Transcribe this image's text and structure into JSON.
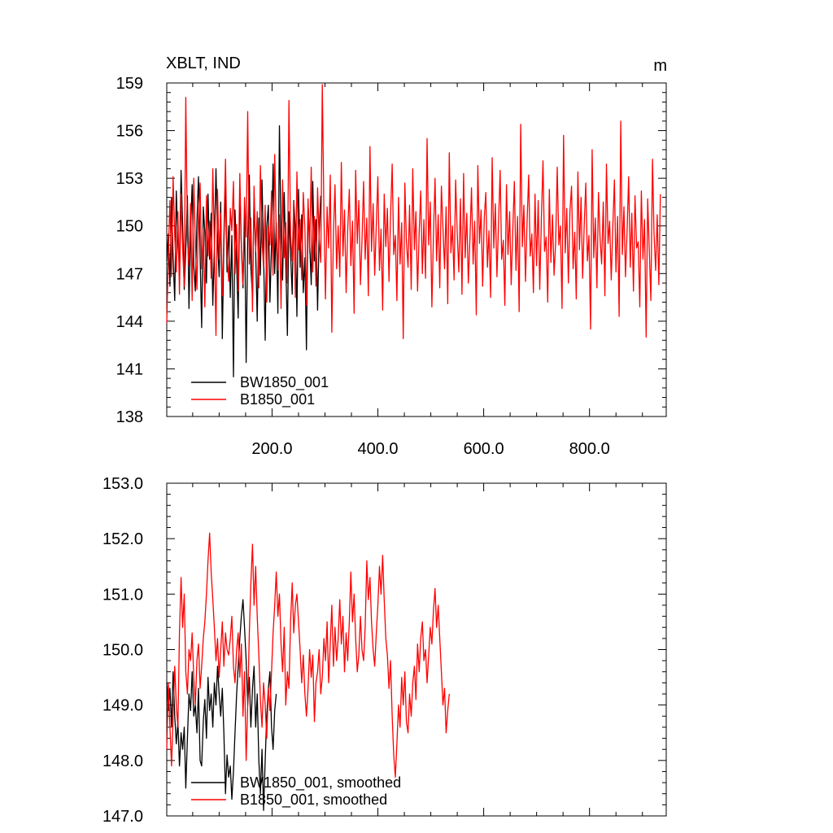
{
  "chart_data": [
    {
      "type": "line",
      "title_left": "XBLT, IND",
      "title_right": "m",
      "xlim": [
        1,
        945
      ],
      "ylim": [
        138,
        159
      ],
      "x_ticks": [
        200,
        400,
        600,
        800
      ],
      "x_tick_labels": [
        "200.0",
        "400.0",
        "600.0",
        "800.0"
      ],
      "y_ticks": [
        138,
        141,
        144,
        147,
        150,
        153,
        156,
        159
      ],
      "y_tick_labels": [
        "138",
        "141",
        "144",
        "147",
        "150",
        "153",
        "156",
        "159"
      ],
      "legend_position": "bottom-left",
      "series": [
        {
          "name": "BW1850_001",
          "color": "#000000",
          "x_start": 1,
          "x_step": 3,
          "values": [
            147.8,
            149.5,
            146.2,
            151.8,
            148.0,
            145.3,
            152.2,
            149.0,
            147.2,
            153.5,
            150.1,
            146.0,
            148.6,
            151.9,
            144.8,
            149.7,
            152.6,
            147.5,
            145.9,
            150.3,
            153.1,
            148.1,
            143.6,
            151.2,
            149.6,
            146.4,
            152.0,
            147.9,
            150.8,
            145.0,
            148.5,
            153.6,
            149.2,
            146.8,
            151.5,
            142.9,
            148.9,
            152.5,
            147.1,
            150.0,
            145.5,
            149.4,
            140.5,
            151.0,
            147.6,
            144.2,
            152.4,
            148.7,
            146.1,
            150.6,
            141.4,
            149.1,
            153.2,
            147.3,
            145.6,
            151.7,
            148.4,
            144.0,
            150.5,
            146.9,
            152.9,
            148.2,
            142.8,
            149.9,
            151.3,
            145.2,
            148.8,
            153.9,
            147.0,
            150.2,
            144.5,
            156.3,
            149.3,
            146.6,
            152.1,
            147.7,
            143.1,
            150.9,
            148.3,
            145.7,
            151.6,
            149.8,
            144.3,
            152.3,
            147.4,
            150.7,
            145.8,
            148.0,
            142.2,
            151.4,
            149.0,
            146.3,
            152.8,
            147.8,
            150.4,
            144.7,
            149.5,
            151.9
          ]
        },
        {
          "name": "B1850_001",
          "color": "#ff0000",
          "x_start": 1,
          "x_step": 3,
          "values": [
            143.9,
            148.3,
            151.6,
            146.8,
            153.1,
            149.4,
            147.1,
            150.9,
            145.7,
            152.0,
            148.6,
            146.2,
            158.1,
            149.2,
            147.5,
            151.4,
            145.3,
            153.0,
            148.9,
            146.0,
            150.6,
            152.7,
            147.3,
            149.8,
            144.9,
            151.9,
            148.1,
            150.3,
            146.7,
            153.6,
            149.0,
            143.1,
            152.3,
            147.9,
            150.8,
            145.6,
            149.5,
            154.2,
            148.2,
            146.5,
            151.1,
            149.7,
            152.8,
            147.0,
            150.1,
            145.9,
            153.3,
            148.7,
            146.3,
            151.8,
            149.3,
            157.2,
            147.6,
            150.5,
            144.6,
            152.5,
            148.4,
            150.9,
            146.1,
            153.8,
            149.1,
            147.4,
            151.3,
            145.2,
            150.0,
            148.8,
            152.2,
            146.9,
            154.5,
            149.6,
            147.2,
            150.7,
            144.8,
            152.9,
            148.0,
            150.2,
            146.4,
            157.9,
            149.4,
            147.8,
            151.5,
            145.5,
            153.4,
            148.5,
            150.4,
            146.6,
            152.1,
            149.9,
            145.0,
            151.7,
            148.3,
            153.7,
            147.1,
            150.6,
            146.2,
            152.4,
            149.2,
            147.7,
            158.9,
            150.8,
            145.4,
            151.2,
            148.6,
            153.2,
            143.3,
            149.5,
            152.6,
            147.3,
            150.0,
            146.8,
            154.0,
            148.1,
            151.0,
            145.8,
            149.7,
            152.3,
            147.5,
            150.3,
            144.5,
            153.5,
            148.9,
            151.6,
            146.3,
            149.1,
            152.8,
            147.9,
            150.5,
            145.6,
            155.0,
            148.4,
            151.4,
            146.9,
            150.1,
            153.1,
            147.2,
            149.8,
            144.7,
            152.0,
            148.7,
            151.1,
            146.5,
            150.6,
            153.9,
            148.2,
            149.4,
            145.3,
            151.8,
            147.6,
            150.2,
            142.9,
            152.7,
            149.0,
            147.4,
            151.3,
            146.0,
            153.6,
            148.5,
            150.9,
            145.9,
            149.6,
            152.2,
            147.0,
            150.4,
            146.7,
            155.5,
            148.8,
            151.5,
            144.9,
            149.3,
            153.0,
            147.8,
            150.7,
            146.1,
            152.5,
            149.9,
            147.3,
            151.2,
            145.1,
            154.6,
            148.3,
            150.0,
            146.6,
            152.9,
            149.5,
            147.1,
            151.7,
            145.7,
            153.3,
            148.0,
            150.8,
            146.4,
            149.2,
            152.4,
            147.6,
            150.3,
            144.4,
            153.8,
            148.9,
            151.0,
            146.2,
            150.5,
            152.1,
            147.4,
            149.7,
            145.5,
            154.3,
            148.6,
            151.4,
            146.8,
            150.1,
            153.5,
            147.9,
            149.1,
            145.0,
            152.6,
            148.2,
            150.9,
            146.3,
            149.8,
            152.8,
            147.2,
            150.6,
            144.6,
            156.4,
            148.7,
            151.3,
            146.5,
            150.2,
            153.2,
            148.1,
            149.5,
            145.8,
            152.0,
            147.5,
            151.6,
            146.0,
            150.4,
            154.1,
            148.4,
            149.3,
            145.2,
            152.3,
            147.7,
            150.7,
            146.9,
            149.0,
            153.7,
            148.8,
            150.0,
            144.8,
            155.7,
            148.3,
            151.1,
            146.4,
            150.9,
            152.5,
            147.3,
            149.6,
            145.4,
            153.4,
            148.5,
            151.8,
            146.7,
            150.1,
            152.7,
            147.8,
            149.4,
            143.5,
            154.8,
            148.0,
            150.5,
            146.1,
            152.1,
            149.2,
            147.6,
            151.5,
            145.6,
            153.9,
            148.9,
            150.3,
            146.6,
            149.9,
            152.9,
            147.1,
            150.6,
            144.3,
            156.6,
            148.2,
            151.2,
            146.8,
            149.7,
            153.1,
            147.4,
            150.8,
            145.9,
            151.9,
            148.6,
            149.0,
            144.9,
            152.2,
            147.9,
            150.4,
            143.0,
            151.7,
            148.4,
            145.3,
            154.2,
            149.5,
            147.2,
            150.7,
            146.3,
            152.0
          ]
        }
      ]
    },
    {
      "type": "line",
      "xlim": [
        1,
        945
      ],
      "ylim": [
        147.0,
        153.0
      ],
      "x_ticks": [
        200,
        400,
        600,
        800
      ],
      "y_ticks": [
        147,
        148,
        149,
        150,
        151,
        152,
        153
      ],
      "y_tick_labels": [
        "147.0",
        "148.0",
        "149.0",
        "150.0",
        "151.0",
        "152.0",
        "153.0"
      ],
      "legend_position": "bottom-left",
      "series": [
        {
          "name": "BW1850_001, smoothed",
          "color": "#000000",
          "x_start": 1,
          "x_step": 3,
          "values": [
            149.4,
            148.9,
            149.3,
            148.6,
            149.6,
            148.8,
            148.3,
            148.7,
            147.9,
            148.5,
            148.2,
            148.6,
            147.5,
            148.4,
            149.2,
            148.9,
            149.6,
            148.8,
            149.0,
            148.5,
            149.3,
            148.0,
            147.9,
            148.7,
            149.1,
            148.4,
            149.5,
            148.9,
            149.2,
            148.6,
            149.4,
            149.0,
            149.7,
            149.2,
            148.8,
            149.3,
            148.5,
            147.4,
            148.1,
            147.7,
            147.9,
            147.3,
            147.8,
            148.5,
            149.2,
            149.7,
            150.2,
            150.6,
            150.9,
            150.4,
            149.8,
            149.0,
            149.5,
            148.6,
            149.3,
            149.7,
            148.6,
            149.2,
            148.0,
            147.4,
            148.2,
            147.1,
            148.0,
            148.8,
            149.3,
            149.6,
            148.6,
            148.2,
            148.9,
            149.2
          ]
        },
        {
          "name": "B1850_001, smoothed",
          "color": "#ff0000",
          "x_start": 1,
          "x_step": 3,
          "values": [
            148.2,
            149.4,
            148.6,
            147.9,
            148.8,
            149.7,
            149.0,
            148.6,
            150.3,
            151.3,
            150.4,
            151.0,
            149.6,
            149.2,
            150.0,
            149.8,
            150.3,
            149.5,
            149.0,
            149.8,
            150.1,
            149.3,
            149.7,
            150.2,
            150.5,
            151.0,
            151.6,
            152.1,
            151.4,
            150.9,
            150.4,
            149.8,
            150.2,
            149.5,
            150.0,
            150.5,
            149.7,
            150.3,
            150.0,
            149.9,
            150.2,
            150.6,
            149.7,
            149.4,
            150.0,
            150.3,
            149.5,
            150.1,
            148.8,
            149.6,
            148.0,
            149.0,
            150.3,
            151.2,
            151.9,
            150.8,
            151.5,
            150.6,
            149.9,
            149.1,
            148.6,
            149.4,
            149.0,
            148.4,
            149.3,
            148.9,
            149.6,
            150.3,
            150.8,
            151.4,
            150.6,
            151.0,
            150.1,
            149.6,
            150.4,
            149.0,
            149.6,
            149.3,
            150.5,
            151.2,
            150.3,
            150.8,
            151.0,
            150.5,
            150.0,
            149.4,
            149.9,
            149.2,
            148.8,
            149.3,
            150.0,
            149.5,
            149.9,
            148.7,
            149.4,
            149.6,
            150.0,
            149.2,
            149.5,
            150.2,
            149.8,
            150.5,
            149.4,
            150.1,
            150.8,
            149.7,
            150.4,
            149.8,
            150.2,
            150.9,
            150.1,
            150.6,
            149.6,
            150.3,
            149.8,
            150.5,
            151.4,
            150.5,
            151.0,
            150.2,
            149.6,
            149.9,
            150.6,
            150.0,
            149.8,
            150.4,
            151.6,
            150.9,
            151.3,
            150.5,
            150.0,
            149.7,
            150.3,
            150.8,
            151.5,
            151.0,
            151.7,
            150.9,
            150.2,
            149.9,
            149.3,
            149.8,
            148.8,
            148.1,
            147.7,
            148.3,
            149.0,
            148.6,
            149.5,
            149.0,
            149.6,
            148.7,
            148.5,
            149.2,
            148.8,
            149.4,
            149.7,
            149.1,
            150.1,
            149.6,
            150.2,
            150.5,
            149.8,
            150.0,
            149.4,
            149.9,
            150.4,
            150.1,
            150.7,
            151.1,
            150.4,
            150.8,
            150.2,
            149.6,
            149.0,
            149.3,
            148.5,
            148.9,
            149.2
          ]
        }
      ]
    }
  ]
}
